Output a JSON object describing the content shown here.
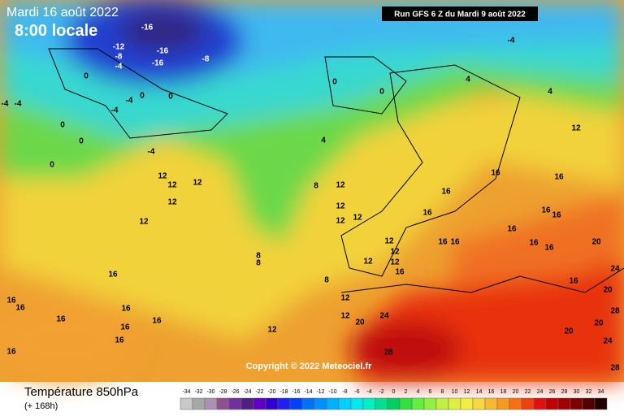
{
  "header": {
    "date": "Mardi 16 août 2022",
    "time": "8:00 locale",
    "run": "Run GFS 6 Z du Mardi 9 août 2022"
  },
  "map": {
    "copyright": "Copyright © 2022 Meteociel.fr",
    "contour_labels": [
      "-16",
      "-12",
      "-8",
      "-4",
      "-16",
      "-16",
      "-8",
      "0",
      "-4",
      "-4",
      "-4",
      "0",
      "0",
      "-4",
      "0",
      "0",
      "0",
      "-4",
      "0",
      "0",
      "4",
      "4",
      "12",
      "4",
      "-4",
      "12",
      "12",
      "12",
      "12",
      "12",
      "8",
      "12",
      "12",
      "12",
      "12",
      "16",
      "16",
      "16",
      "16",
      "16",
      "16",
      "16",
      "16",
      "16",
      "16",
      "16",
      "12",
      "12",
      "12",
      "12",
      "8",
      "8",
      "8",
      "16",
      "16",
      "16",
      "16",
      "16",
      "16",
      "16",
      "16",
      "16",
      "16",
      "12",
      "12",
      "12",
      "24",
      "20",
      "20",
      "24",
      "20",
      "16",
      "28",
      "20",
      "20",
      "24",
      "28",
      "28"
    ]
  },
  "footer": {
    "title": "Température 850hPa",
    "lead": "(+ 168h)",
    "scale": {
      "values": [
        -34,
        -32,
        -30,
        -28,
        -26,
        -24,
        -22,
        -20,
        -18,
        -16,
        -14,
        -12,
        -10,
        -8,
        -6,
        -4,
        -2,
        0,
        2,
        4,
        6,
        8,
        10,
        12,
        14,
        16,
        18,
        20,
        22,
        24,
        26,
        28,
        30,
        32,
        34
      ],
      "colors": [
        "#c8c8c8",
        "#a8a8a8",
        "#b090b0",
        "#905090",
        "#7030a0",
        "#502080",
        "#6000c0",
        "#3000d0",
        "#2020f0",
        "#0040ff",
        "#0070ff",
        "#0090ff",
        "#00b0ff",
        "#00d0ff",
        "#00e8f0",
        "#00f0c0",
        "#00e090",
        "#00d060",
        "#30e040",
        "#60f040",
        "#90f040",
        "#c0f040",
        "#e0f040",
        "#f0f040",
        "#f8d840",
        "#f8b830",
        "#f89820",
        "#f87010",
        "#f04010",
        "#e01010",
        "#c00000",
        "#a00000",
        "#800000",
        "#500000",
        "#200000"
      ]
    }
  }
}
